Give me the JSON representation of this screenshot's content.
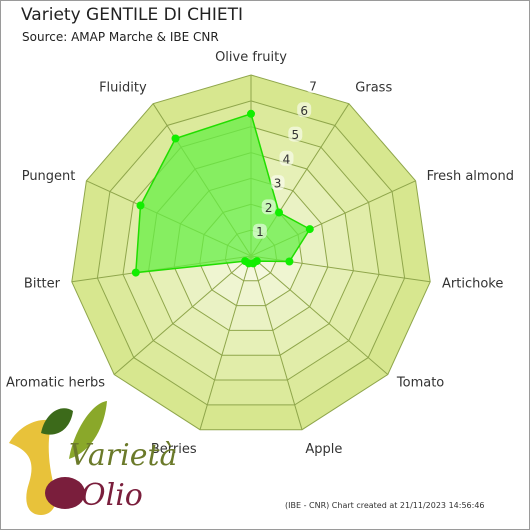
{
  "title": "Variety GENTILE DI CHIETI",
  "subtitle": "Source: AMAP Marche & IBE CNR",
  "credit": "(IBE - CNR) Chart created at 21/11/2023 14:56:46",
  "logo": {
    "text_top": "Varietà",
    "text_bottom": "Olio"
  },
  "colors": {
    "band_outer": "#d7e78f",
    "band_inner": "#f4f8de",
    "series_fill": "#66ee44",
    "series_line": "#22dd00",
    "point": "#11ee00",
    "grid": "#8fa64b"
  },
  "chart_data": {
    "type": "radar",
    "categories": [
      "Olive fruity",
      "Grass",
      "Fresh almond",
      "Artichoke",
      "Tomato",
      "Apple",
      "Berries",
      "Aromatic herbs",
      "Bitter",
      "Pungent",
      "Fluidity"
    ],
    "rlim": [
      0,
      7
    ],
    "tick_labels": [
      "1",
      "2",
      "3",
      "4",
      "5",
      "6",
      "7"
    ],
    "values": [
      5.5,
      2.0,
      2.5,
      1.5,
      0.3,
      0.3,
      0.3,
      0.3,
      4.5,
      4.7,
      5.4
    ]
  }
}
